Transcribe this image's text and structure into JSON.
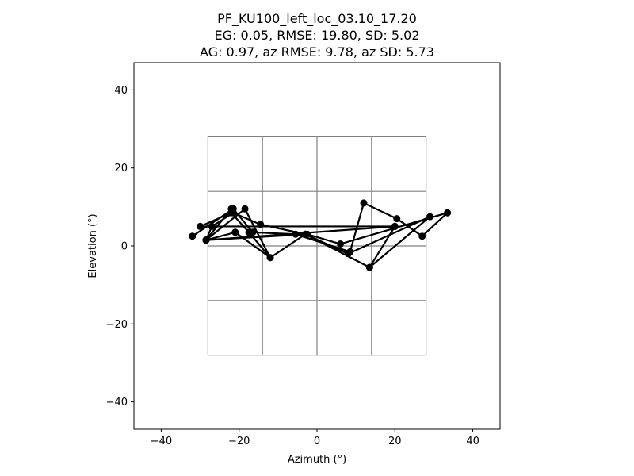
{
  "chart_data": {
    "type": "line",
    "title_lines": [
      "PF_KU100_left_loc_03.10_17.20",
      "EG: 0.05, RMSE: 19.80, SD: 5.02",
      "AG: 0.97, az RMSE: 9.78, az SD: 5.73"
    ],
    "xlabel": "Azimuth (°)",
    "ylabel": "Elevation (°)",
    "xlim": [
      -47,
      47
    ],
    "ylim": [
      -47,
      47
    ],
    "xticks": [
      -40,
      -20,
      0,
      20,
      40
    ],
    "yticks": [
      -40,
      -20,
      0,
      20,
      40
    ],
    "xtick_labels": [
      "−40",
      "−20",
      "0",
      "20",
      "40"
    ],
    "ytick_labels": [
      "−40",
      "−20",
      "0",
      "20",
      "40"
    ],
    "reference_grid": {
      "x": [
        -28,
        -14,
        0,
        14,
        28
      ],
      "y": [
        -28,
        -14,
        0,
        14,
        28
      ],
      "color": "#808080"
    },
    "series": [
      {
        "color": "#000000",
        "marker": "circle",
        "x": [
          -32,
          -21.5,
          -16.5,
          -5.5,
          8.5,
          12,
          20.5,
          27,
          33.5,
          6,
          -2.5,
          -28.5,
          -18.5,
          -12,
          -3,
          13.5,
          20,
          -30,
          -22,
          -17.5,
          -12,
          -21,
          -28.5,
          -27,
          -21.5,
          -14.5,
          -3,
          8,
          29,
          13.5,
          20,
          -28.5,
          -22
        ],
        "y": [
          2.5,
          9.5,
          3.5,
          3,
          -1.5,
          11,
          7,
          2.5,
          8.5,
          0.5,
          3,
          1.5,
          9.5,
          -3,
          3,
          -5.5,
          5,
          5,
          8.5,
          3.5,
          -3,
          3.5,
          1.5,
          5,
          8.5,
          5.5,
          3,
          -2,
          7.5,
          -5.5,
          5,
          1.5,
          9.5
        ]
      }
    ]
  }
}
